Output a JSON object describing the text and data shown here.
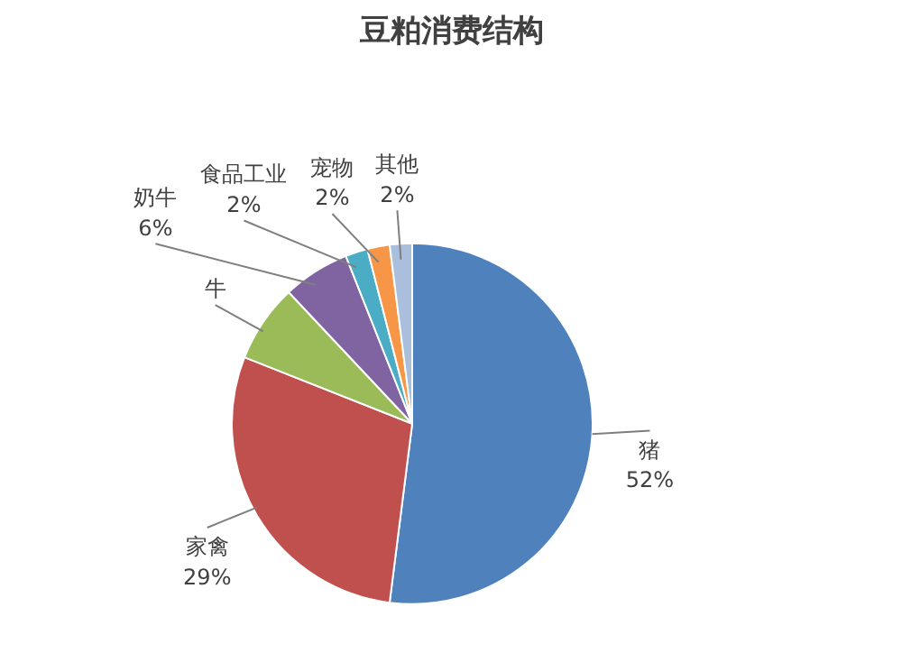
{
  "chart_data": {
    "type": "pie",
    "title": "豆粕消费结构",
    "categories": [
      "猪",
      "家禽",
      "牛",
      "奶牛",
      "食品工业",
      "宠物",
      "其他"
    ],
    "values": [
      52,
      29,
      7,
      6,
      2,
      2,
      2
    ],
    "value_labels": [
      "52%",
      "29%",
      null,
      "6%",
      "2%",
      "2%",
      "2%"
    ],
    "colors": [
      "#4f81bd",
      "#c0504d",
      "#9bbb59",
      "#8064a2",
      "#4bacc6",
      "#f79646",
      "#a9bfdc"
    ]
  }
}
